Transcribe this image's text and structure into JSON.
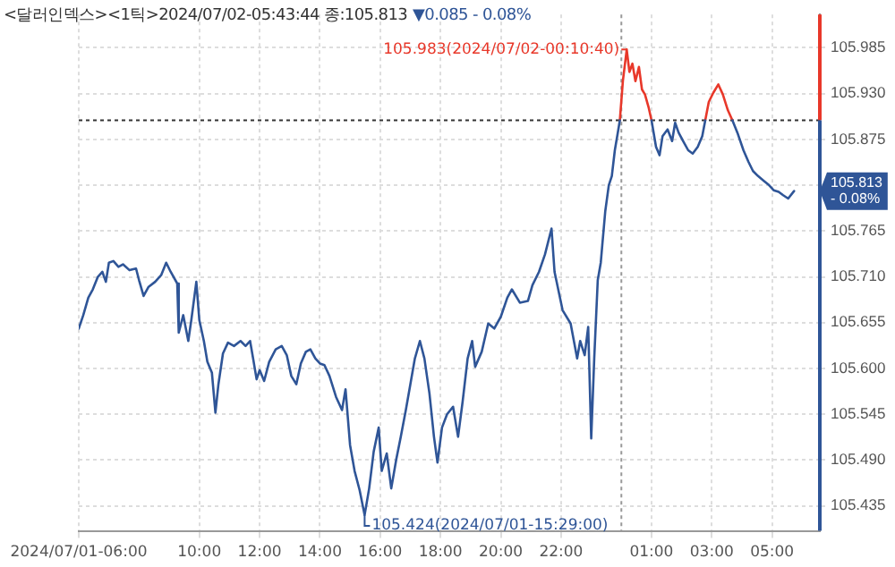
{
  "chart_data": {
    "type": "line",
    "title": "<달러인덱스><1틱>2024/07/02-05:43:44 종:105.813",
    "subtitle": "▼0.085  - 0.08%",
    "xlim": [
      "2024-07-01T06:00",
      "2024-07-02T06:35"
    ],
    "xticks": [
      {
        "value": "2024-07-01T06:00",
        "label": "2024/07/01-06:00"
      },
      {
        "value": "2024-07-01T10:00",
        "label": "10:00"
      },
      {
        "value": "2024-07-01T12:00",
        "label": "12:00"
      },
      {
        "value": "2024-07-01T14:00",
        "label": "14:00"
      },
      {
        "value": "2024-07-01T16:00",
        "label": "16:00"
      },
      {
        "value": "2024-07-01T18:00",
        "label": "18:00"
      },
      {
        "value": "2024-07-01T20:00",
        "label": "20:00"
      },
      {
        "value": "2024-07-01T22:00",
        "label": "22:00"
      },
      {
        "value": "2024-07-02T01:00",
        "label": "01:00"
      },
      {
        "value": "2024-07-02T03:00",
        "label": "03:00"
      },
      {
        "value": "2024-07-02T05:00",
        "label": "05:00"
      }
    ],
    "ylim": [
      105.405,
      106.025
    ],
    "yticks": [
      105.435,
      {
        "value": 105.49,
        "label": "105.490"
      },
      105.545,
      {
        "value": 105.6,
        "label": "105.600"
      },
      105.655,
      {
        "value": 105.71,
        "label": "105.710"
      },
      105.765,
      {
        "value": 105.82,
        "label": null
      },
      105.875,
      {
        "value": 105.93,
        "label": "105.930"
      },
      105.985
    ],
    "grid": true,
    "legend": false,
    "marker": "none",
    "line_style": "solid",
    "ref_lines": [
      {
        "axis": "y",
        "value": 105.898,
        "color": "#333333",
        "line_style": "dotted"
      },
      {
        "axis": "x",
        "value": "2024-07-02T00:00",
        "color": "#999999",
        "line_style": "dotted"
      }
    ],
    "annotations": [
      {
        "text": "105.983(2024/07/02-00:10:40)",
        "x": "2024-07-02T00:10:40",
        "y": 105.983
      },
      {
        "text": "105.424(2024/07/01-15:29:00)",
        "x": "2024-07-01T15:29:00",
        "y": 105.424
      },
      {
        "text": "105.813 - 0.08%",
        "y": 105.813
      }
    ],
    "series": [
      {
        "color": "#2f5597",
        "x": [
          "2024-07-01T06:00",
          "2024-07-01T06:09",
          "2024-07-01T06:19",
          "2024-07-01T06:28",
          "2024-07-01T06:38",
          "2024-07-01T06:47",
          "2024-07-01T06:54",
          "2024-07-01T07:00",
          "2024-07-01T07:09",
          "2024-07-01T07:19",
          "2024-07-01T07:28",
          "2024-07-01T07:41",
          "2024-07-01T07:54",
          "2024-07-01T08:00",
          "2024-07-01T08:09",
          "2024-07-01T08:19",
          "2024-07-01T08:32",
          "2024-07-01T08:44",
          "2024-07-01T08:54",
          "2024-07-01T09:03",
          "2024-07-01T09:16",
          "2024-07-01T09:19",
          "2024-07-01T09:28",
          "2024-07-01T09:38",
          "2024-07-01T09:44",
          "2024-07-01T09:54",
          "2024-07-01T10:00",
          "2024-07-01T10:09",
          "2024-07-01T10:16",
          "2024-07-01T10:25",
          "2024-07-01T10:32",
          "2024-07-01T10:38",
          "2024-07-01T10:47",
          "2024-07-01T10:57",
          "2024-07-01T11:09",
          "2024-07-01T11:22",
          "2024-07-01T11:32",
          "2024-07-01T11:41",
          "2024-07-01T11:47",
          "2024-07-01T11:54",
          "2024-07-01T12:00",
          "2024-07-01T12:09",
          "2024-07-01T12:19",
          "2024-07-01T12:32",
          "2024-07-01T12:44",
          "2024-07-01T12:54",
          "2024-07-01T13:03",
          "2024-07-01T13:13",
          "2024-07-01T13:22",
          "2024-07-01T13:32",
          "2024-07-01T13:41",
          "2024-07-01T13:51",
          "2024-07-01T14:00",
          "2024-07-01T14:09",
          "2024-07-01T14:19",
          "2024-07-01T14:32",
          "2024-07-01T14:44",
          "2024-07-01T14:51",
          "2024-07-01T15:00",
          "2024-07-01T15:09",
          "2024-07-01T15:19",
          "2024-07-01T15:29",
          "2024-07-01T15:38",
          "2024-07-01T15:47",
          "2024-07-01T15:57",
          "2024-07-01T16:03",
          "2024-07-01T16:13",
          "2024-07-01T16:22",
          "2024-07-01T16:32",
          "2024-07-01T16:41",
          "2024-07-01T16:51",
          "2024-07-01T17:00",
          "2024-07-01T17:09",
          "2024-07-01T17:19",
          "2024-07-01T17:28",
          "2024-07-01T17:38",
          "2024-07-01T17:47",
          "2024-07-01T17:54",
          "2024-07-01T18:03",
          "2024-07-01T18:13",
          "2024-07-01T18:25",
          "2024-07-01T18:35",
          "2024-07-01T18:44",
          "2024-07-01T18:54",
          "2024-07-01T19:03",
          "2024-07-01T19:09",
          "2024-07-01T19:22",
          "2024-07-01T19:35",
          "2024-07-01T19:47",
          "2024-07-01T20:00",
          "2024-07-01T20:13",
          "2024-07-01T20:22",
          "2024-07-01T20:38",
          "2024-07-01T20:54",
          "2024-07-01T21:03",
          "2024-07-01T21:16",
          "2024-07-01T21:28",
          "2024-07-01T21:41",
          "2024-07-01T21:47",
          "2024-07-01T22:03",
          "2024-07-01T22:19",
          "2024-07-01T22:32",
          "2024-07-01T22:38",
          "2024-07-01T22:47",
          "2024-07-01T22:54",
          "2024-07-01T23:00",
          "2024-07-01T23:06",
          "2024-07-01T23:13",
          "2024-07-01T23:19",
          "2024-07-01T23:22",
          "2024-07-01T23:28",
          "2024-07-01T23:35",
          "2024-07-01T23:41",
          "2024-07-01T23:47",
          "2024-07-01T23:54",
          "2024-07-01T23:57",
          "2024-07-02T00:10",
          "2024-07-02T01:00",
          "2024-07-02T01:09",
          "2024-07-02T01:16",
          "2024-07-02T01:22",
          "2024-07-02T01:32",
          "2024-07-02T01:41",
          "2024-07-02T01:47",
          "2024-07-02T01:54",
          "2024-07-02T02:03",
          "2024-07-02T02:13",
          "2024-07-02T02:22",
          "2024-07-02T02:32",
          "2024-07-02T02:41",
          "2024-07-02T02:47",
          "2024-07-02T03:13",
          "2024-07-02T03:41",
          "2024-07-02T03:51",
          "2024-07-02T04:03",
          "2024-07-02T04:13",
          "2024-07-02T04:22",
          "2024-07-02T04:32",
          "2024-07-02T04:44",
          "2024-07-02T04:54",
          "2024-07-02T05:03",
          "2024-07-02T05:13",
          "2024-07-02T05:22",
          "2024-07-02T05:32",
          "2024-07-02T05:43:44"
        ],
        "values": [
          105.648,
          105.664,
          105.685,
          105.695,
          105.71,
          105.716,
          105.704,
          105.727,
          105.729,
          105.722,
          105.725,
          105.718,
          105.72,
          105.706,
          105.687,
          105.698,
          105.704,
          105.712,
          105.727,
          105.716,
          105.702,
          105.643,
          105.664,
          105.633,
          105.658,
          105.704,
          105.658,
          105.633,
          105.608,
          105.595,
          105.547,
          105.581,
          105.618,
          105.631,
          105.627,
          105.633,
          105.627,
          105.633,
          105.612,
          105.587,
          105.598,
          105.585,
          105.608,
          105.623,
          105.627,
          105.616,
          105.591,
          105.581,
          105.606,
          105.62,
          105.623,
          105.612,
          105.606,
          105.604,
          105.591,
          105.566,
          105.55,
          105.575,
          105.508,
          105.477,
          105.454,
          105.424,
          105.456,
          105.5,
          105.529,
          105.477,
          105.498,
          105.456,
          105.491,
          105.518,
          105.55,
          105.581,
          105.612,
          105.633,
          105.612,
          105.57,
          105.518,
          105.487,
          105.529,
          105.545,
          105.554,
          105.518,
          105.56,
          105.612,
          105.633,
          105.602,
          105.62,
          105.654,
          105.648,
          105.662,
          105.685,
          105.695,
          105.679,
          105.681,
          105.7,
          105.716,
          105.737,
          105.768,
          105.716,
          105.67,
          105.654,
          105.612,
          105.633,
          105.616,
          105.65,
          105.516,
          105.612,
          105.706,
          105.727,
          105.748,
          105.789,
          105.82,
          105.831,
          105.862,
          105.887,
          105.898,
          null,
          105.898,
          105.866,
          105.856,
          105.879,
          105.887,
          105.873,
          105.895,
          105.883,
          105.873,
          105.862,
          105.858,
          105.866,
          105.879,
          105.898,
          null,
          105.898,
          105.883,
          105.862,
          105.848,
          105.837,
          105.831,
          105.825,
          105.82,
          105.814,
          105.812,
          105.808,
          105.804,
          105.813
        ]
      },
      {
        "color": "#e8382a",
        "x": [
          "2024-07-01T23:57",
          "2024-07-02T00:03",
          "2024-07-02T00:10:40",
          "2024-07-02T00:16",
          "2024-07-02T00:22",
          "2024-07-02T00:28",
          "2024-07-02T00:35",
          "2024-07-02T00:41",
          "2024-07-02T00:47",
          "2024-07-02T00:54",
          "2024-07-02T01:00",
          "2024-07-02T02:00",
          "2024-07-02T02:47",
          "2024-07-02T02:54",
          "2024-07-02T03:03",
          "2024-07-02T03:13",
          "2024-07-02T03:22",
          "2024-07-02T03:32",
          "2024-07-02T03:41"
        ],
        "values": [
          105.898,
          105.945,
          105.983,
          105.956,
          105.966,
          105.945,
          105.962,
          105.935,
          105.929,
          105.914,
          105.898,
          null,
          105.898,
          105.92,
          105.931,
          105.941,
          105.929,
          105.91,
          105.898
        ]
      }
    ]
  }
}
